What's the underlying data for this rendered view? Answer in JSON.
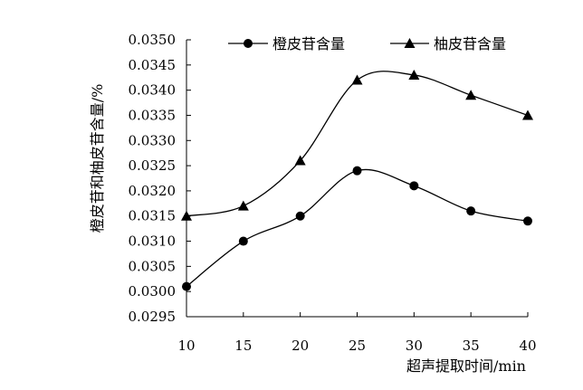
{
  "chart_data": {
    "type": "line",
    "title": "",
    "xlabel": "超声提取时间/min",
    "ylabel": "橙皮苷和柚皮苷含量/%",
    "x": [
      10,
      15,
      20,
      25,
      30,
      35,
      40
    ],
    "xlim": [
      10,
      40
    ],
    "ylim": [
      0.0295,
      0.035
    ],
    "x_ticks": [
      "10",
      "15",
      "20",
      "25",
      "30",
      "35",
      "40"
    ],
    "y_ticks": [
      "0.0295",
      "0.0300",
      "0.0305",
      "0.0310",
      "0.0315",
      "0.0320",
      "0.0325",
      "0.0330",
      "0.0335",
      "0.0340",
      "0.0345",
      "0.0350"
    ],
    "grid": false,
    "legend_position": "top",
    "series": [
      {
        "name": "橙皮苷含量",
        "marker": "circle",
        "values": [
          0.0301,
          0.031,
          0.0315,
          0.0324,
          0.0321,
          0.0316,
          0.0314
        ]
      },
      {
        "name": "柚皮苷含量",
        "marker": "triangle",
        "values": [
          0.0315,
          0.0317,
          0.0326,
          0.0342,
          0.0343,
          0.0339,
          0.0335
        ]
      }
    ]
  }
}
